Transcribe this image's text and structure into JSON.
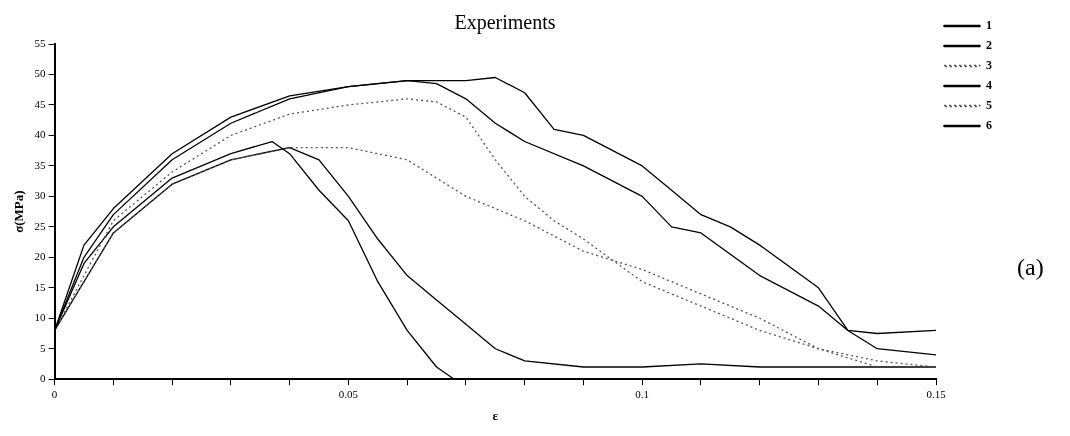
{
  "chart_data": {
    "type": "line",
    "title": "Experiments",
    "xlabel": "ε",
    "ylabel": "σ(MPa)",
    "annotations": [
      "(a)"
    ],
    "xlim": [
      0,
      0.15
    ],
    "xticks": [
      0,
      {
        "value": 0.01,
        "label": null
      },
      {
        "value": 0.02,
        "label": null
      },
      {
        "value": 0.03,
        "label": null
      },
      {
        "value": 0.04,
        "label": null
      },
      {
        "value": 0.05,
        "label": "0.05"
      },
      {
        "value": 0.06,
        "label": null
      },
      {
        "value": 0.07,
        "label": null
      },
      {
        "value": 0.08,
        "label": null
      },
      {
        "value": 0.09,
        "label": null
      },
      {
        "value": 0.1,
        "label": "0.1"
      },
      {
        "value": 0.11,
        "label": null
      },
      {
        "value": 0.12,
        "label": null
      },
      {
        "value": 0.13,
        "label": null
      },
      {
        "value": 0.14,
        "label": null
      },
      {
        "value": 0.15,
        "label": "0.15"
      }
    ],
    "ylim": [
      0,
      55
    ],
    "yticks": [
      0,
      5,
      10,
      15,
      20,
      25,
      30,
      35,
      40,
      45,
      50,
      55
    ],
    "grid": false,
    "legend": "top right",
    "marker": "none",
    "series": [
      {
        "name": "1",
        "color": "#000000",
        "line_style": "solid",
        "x": [
          0,
          0.005,
          0.01,
          0.02,
          0.03,
          0.04,
          0.05,
          0.06,
          0.07,
          0.075,
          0.08,
          0.085,
          0.09,
          0.1,
          0.105,
          0.11,
          0.115,
          0.12,
          0.13,
          0.135,
          0.14,
          0.15
        ],
        "values": [
          8,
          22,
          28,
          37,
          43,
          46.5,
          48,
          49,
          49,
          49.5,
          47,
          41,
          40,
          35,
          31,
          27,
          25,
          22,
          15,
          8,
          7.5,
          8
        ]
      },
      {
        "name": "2",
        "color": "#000000",
        "line_style": "solid",
        "x": [
          0,
          0.005,
          0.01,
          0.02,
          0.03,
          0.04,
          0.05,
          0.06,
          0.065,
          0.07,
          0.075,
          0.08,
          0.09,
          0.1,
          0.105,
          0.11,
          0.12,
          0.13,
          0.135,
          0.14,
          0.15
        ],
        "values": [
          8,
          20,
          27,
          36,
          42,
          46,
          48,
          49,
          48.5,
          46,
          42,
          39,
          35,
          30,
          25,
          24,
          17,
          12,
          8,
          5,
          4
        ]
      },
      {
        "name": "3",
        "color": "#555555",
        "line_style": "dotted",
        "x": [
          0,
          0.01,
          0.02,
          0.03,
          0.04,
          0.05,
          0.06,
          0.065,
          0.07,
          0.075,
          0.08,
          0.085,
          0.09,
          0.1,
          0.11,
          0.12,
          0.13,
          0.14
        ],
        "values": [
          8,
          26,
          34,
          40,
          43.5,
          45,
          46,
          45.5,
          43,
          36,
          30,
          26,
          23,
          16,
          12,
          8,
          5,
          2
        ]
      },
      {
        "name": "4",
        "color": "#000000",
        "line_style": "solid",
        "x": [
          0,
          0.005,
          0.01,
          0.02,
          0.03,
          0.037,
          0.04,
          0.045,
          0.05,
          0.055,
          0.06,
          0.065,
          0.068
        ],
        "values": [
          8,
          19,
          25,
          33,
          37,
          39,
          37,
          31,
          26,
          16,
          8,
          2,
          0
        ]
      },
      {
        "name": "5",
        "color": "#555555",
        "line_style": "dotted",
        "x": [
          0,
          0.01,
          0.02,
          0.03,
          0.04,
          0.05,
          0.06,
          0.065,
          0.07,
          0.08,
          0.09,
          0.1,
          0.11,
          0.12,
          0.13,
          0.14,
          0.15
        ],
        "values": [
          8,
          24,
          32,
          36,
          38,
          38,
          36,
          33,
          30,
          26,
          21,
          18,
          14,
          10,
          5,
          3,
          2
        ]
      },
      {
        "name": "6",
        "color": "#000000",
        "line_style": "solid",
        "x": [
          0,
          0.01,
          0.02,
          0.03,
          0.04,
          0.045,
          0.05,
          0.055,
          0.06,
          0.065,
          0.07,
          0.075,
          0.08,
          0.09,
          0.1,
          0.11,
          0.12,
          0.13,
          0.15
        ],
        "values": [
          8,
          24,
          32,
          36,
          38,
          36,
          30,
          23,
          17,
          13,
          9,
          5,
          3,
          2,
          2,
          2.5,
          2,
          2,
          2
        ]
      }
    ]
  }
}
